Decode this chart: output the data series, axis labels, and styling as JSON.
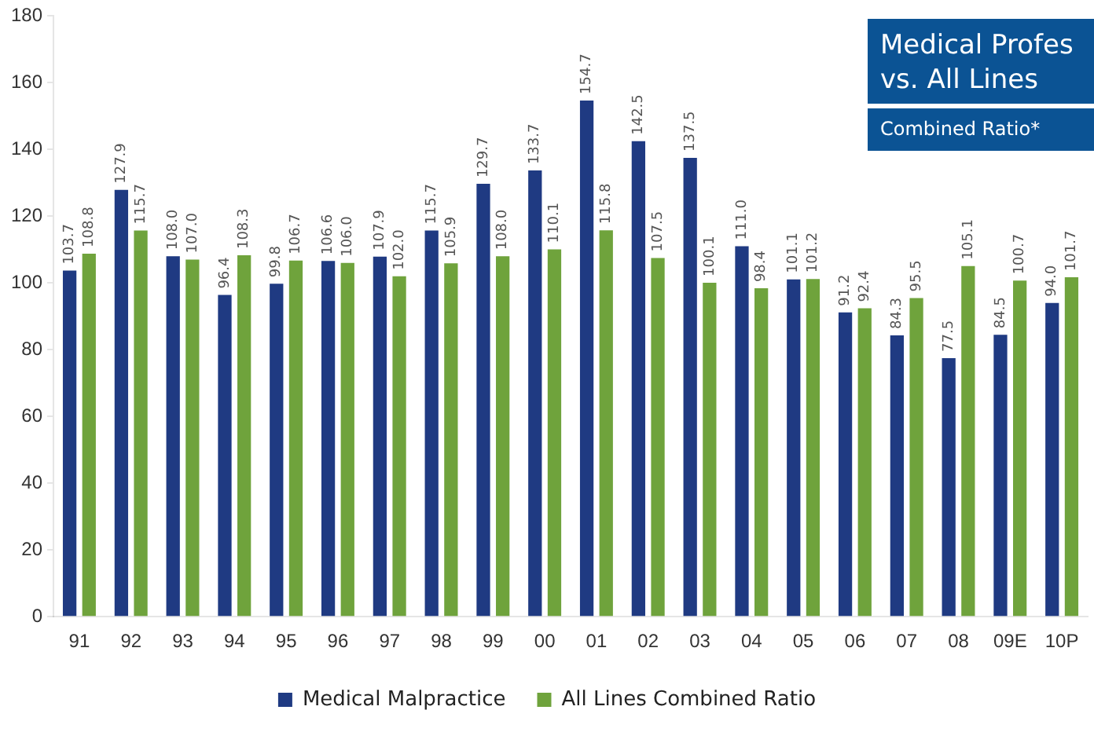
{
  "chart_data": {
    "type": "bar",
    "title": "Medical Profes vs. All Lines",
    "subtitle": "Combined Ratio*",
    "categories": [
      "91",
      "92",
      "93",
      "94",
      "95",
      "96",
      "97",
      "98",
      "99",
      "00",
      "01",
      "02",
      "03",
      "04",
      "05",
      "06",
      "07",
      "08",
      "09E",
      "10P"
    ],
    "series": [
      {
        "name": "Medical Malpractice",
        "color": "#1f3a82",
        "values": [
          103.7,
          127.9,
          108.0,
          96.4,
          99.8,
          106.6,
          107.9,
          115.7,
          129.7,
          133.7,
          154.7,
          142.5,
          137.5,
          111.0,
          101.1,
          91.2,
          84.3,
          77.5,
          84.5,
          94.0
        ],
        "value_labels": [
          "103.7",
          "127.9",
          "108.0",
          "96.4",
          "99.8",
          "106.6",
          "107.9",
          "115.7",
          "129.7",
          "133.7",
          "154.7",
          "142.5",
          "137.5",
          "111.0",
          "101.1",
          "91.2",
          "84.3",
          "77.5",
          "84.5",
          "94.0"
        ]
      },
      {
        "name": "All Lines Combined Ratio",
        "color": "#6fa33c",
        "values": [
          108.8,
          115.7,
          107.0,
          108.3,
          106.7,
          106.0,
          102.0,
          105.9,
          108.0,
          110.1,
          115.8,
          107.5,
          100.1,
          98.4,
          101.2,
          92.4,
          95.5,
          105.1,
          100.7,
          101.7
        ],
        "value_labels": [
          "108.8",
          "115.7",
          "107.0",
          "108.3",
          "106.7",
          "106.0",
          "102.0",
          "105.9",
          "108.0",
          "110.1",
          "115.8",
          "107.5",
          "100.1",
          "98.4",
          "101.2",
          "92.4",
          "95.5",
          "105.1",
          "100.7",
          "101.7"
        ]
      }
    ],
    "ylim": [
      0,
      180
    ],
    "yticks": [
      0,
      20,
      40,
      60,
      80,
      100,
      120,
      140,
      160,
      180
    ],
    "grid": false,
    "legend": "bottom"
  }
}
